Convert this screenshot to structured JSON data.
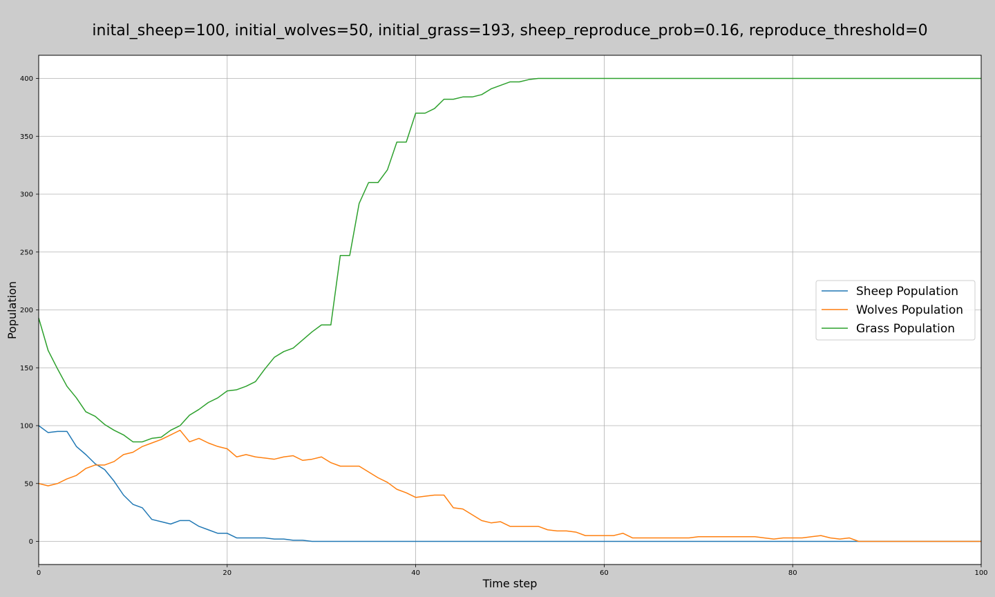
{
  "chart_data": {
    "type": "line",
    "title": "inital_sheep=100, initial_wolves=50, initial_grass=193, sheep_reproduce_prob=0.16, reproduce_threshold=0",
    "xlabel": "Time step",
    "ylabel": "Population",
    "xlim": [
      0,
      100
    ],
    "ylim": [
      -20,
      420
    ],
    "xticks": [
      0,
      20,
      40,
      60,
      80,
      100
    ],
    "yticks": [
      0,
      50,
      100,
      150,
      200,
      250,
      300,
      350,
      400
    ],
    "grid": true,
    "legend_position": "center-right",
    "x": [
      0,
      1,
      2,
      3,
      4,
      5,
      6,
      7,
      8,
      9,
      10,
      11,
      12,
      13,
      14,
      15,
      16,
      17,
      18,
      19,
      20,
      21,
      22,
      23,
      24,
      25,
      26,
      27,
      28,
      29,
      30,
      31,
      32,
      33,
      34,
      35,
      36,
      37,
      38,
      39,
      40,
      41,
      42,
      43,
      44,
      45,
      46,
      47,
      48,
      49,
      50,
      51,
      52,
      53,
      54,
      55,
      56,
      57,
      58,
      59,
      60,
      61,
      62,
      63,
      64,
      65,
      66,
      67,
      68,
      69,
      70,
      71,
      72,
      73,
      74,
      75,
      76,
      77,
      78,
      79,
      80,
      81,
      82,
      83,
      84,
      85,
      86,
      87,
      88,
      89,
      90,
      91,
      92,
      93,
      94,
      95,
      96,
      97,
      98,
      99,
      100
    ],
    "series": [
      {
        "name": "Sheep Population",
        "color": "#1f77b4",
        "values": [
          100,
          94,
          95,
          95,
          82,
          75,
          67,
          62,
          52,
          40,
          32,
          29,
          19,
          17,
          15,
          18,
          18,
          13,
          10,
          7,
          7,
          3,
          3,
          3,
          3,
          2,
          2,
          1,
          1,
          0,
          0,
          0,
          0,
          0,
          0,
          0,
          0,
          0,
          0,
          0,
          0,
          0,
          0,
          0,
          0,
          0,
          0,
          0,
          0,
          0,
          0,
          0,
          0,
          0,
          0,
          0,
          0,
          0,
          0,
          0,
          0,
          0,
          0,
          0,
          0,
          0,
          0,
          0,
          0,
          0,
          0,
          0,
          0,
          0,
          0,
          0,
          0,
          0,
          0,
          0,
          0,
          0,
          0,
          0,
          0,
          0,
          0,
          0,
          0,
          0,
          0,
          0,
          0,
          0,
          0,
          0,
          0,
          0,
          0,
          0,
          0
        ]
      },
      {
        "name": "Wolves Population",
        "color": "#ff7f0e",
        "values": [
          50,
          48,
          50,
          54,
          57,
          63,
          66,
          66,
          69,
          75,
          77,
          82,
          85,
          88,
          92,
          96,
          86,
          89,
          85,
          82,
          80,
          73,
          75,
          73,
          72,
          71,
          73,
          74,
          70,
          71,
          73,
          68,
          65,
          65,
          65,
          60,
          55,
          51,
          45,
          42,
          38,
          39,
          40,
          40,
          29,
          28,
          23,
          18,
          16,
          17,
          13,
          13,
          13,
          13,
          10,
          9,
          9,
          8,
          5,
          5,
          5,
          5,
          7,
          3,
          3,
          3,
          3,
          3,
          3,
          3,
          4,
          4,
          4,
          4,
          4,
          4,
          4,
          3,
          2,
          3,
          3,
          3,
          4,
          5,
          3,
          2,
          3,
          0,
          0,
          0,
          0,
          0,
          0,
          0,
          0,
          0,
          0,
          0,
          0,
          0,
          0
        ]
      },
      {
        "name": "Grass Population",
        "color": "#2ca02c",
        "values": [
          193,
          165,
          149,
          134,
          124,
          112,
          108,
          101,
          96,
          92,
          86,
          86,
          89,
          90,
          96,
          100,
          109,
          114,
          120,
          124,
          130,
          131,
          134,
          138,
          149,
          159,
          164,
          167,
          174,
          181,
          187,
          187,
          247,
          247,
          292,
          310,
          310,
          321,
          345,
          345,
          370,
          370,
          374,
          382,
          382,
          384,
          384,
          386,
          391,
          394,
          397,
          397,
          399,
          400,
          400,
          400,
          400,
          400,
          400,
          400,
          400,
          400,
          400,
          400,
          400,
          400,
          400,
          400,
          400,
          400,
          400,
          400,
          400,
          400,
          400,
          400,
          400,
          400,
          400,
          400,
          400,
          400,
          400,
          400,
          400,
          400,
          400,
          400,
          400,
          400,
          400,
          400,
          400,
          400,
          400,
          400,
          400,
          400,
          400,
          400,
          400
        ]
      }
    ]
  }
}
